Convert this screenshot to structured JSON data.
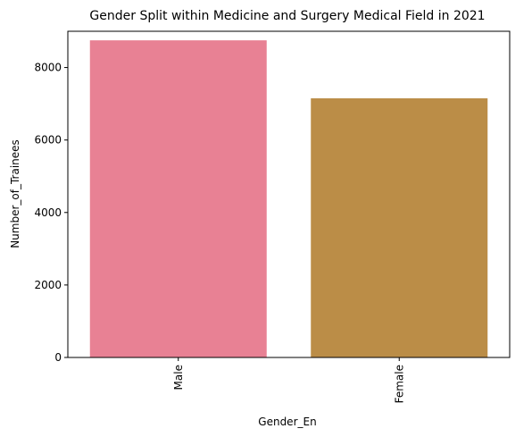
{
  "chart_data": {
    "type": "bar",
    "title": "Gender Split within Medicine and Surgery Medical Field in 2021",
    "xlabel": "Gender_En",
    "ylabel": "Number_of_Trainees",
    "categories": [
      "Male",
      "Female"
    ],
    "values": [
      8750,
      7150
    ],
    "colors": [
      "#e88194",
      "#bb8d47"
    ],
    "ylim": [
      0,
      9000
    ],
    "yticks": [
      0,
      2000,
      4000,
      6000,
      8000
    ],
    "grid": false,
    "legend": "none"
  }
}
